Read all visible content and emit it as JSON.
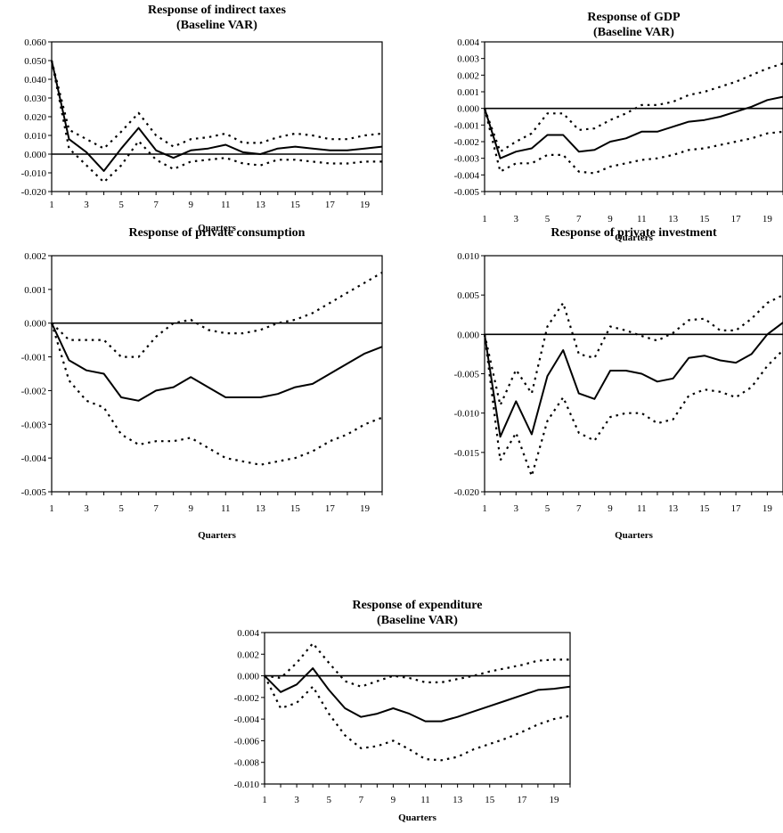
{
  "chart_data": [
    {
      "type": "line",
      "title": "Response of indirect taxes",
      "subtitle": "(Baseline VAR)",
      "xlabel": "Quarters",
      "ylabel": "",
      "ylim": [
        -0.02,
        0.06
      ],
      "yticks": [
        "0.060",
        "0.050",
        "0.040",
        "0.030",
        "0.020",
        "0.010",
        "0.000",
        "-0.010",
        "-0.020"
      ],
      "xticks": [
        "1",
        "3",
        "5",
        "7",
        "9",
        "11",
        "13",
        "15",
        "17",
        "19"
      ],
      "x": [
        1,
        2,
        3,
        4,
        5,
        6,
        7,
        8,
        9,
        10,
        11,
        12,
        13,
        14,
        15,
        16,
        17,
        18,
        19,
        20
      ],
      "series": [
        {
          "values": [
            0.05,
            0.008,
            0.001,
            -0.009,
            0.003,
            0.014,
            0.002,
            -0.002,
            0.002,
            0.003,
            0.005,
            0.001,
            0.0,
            0.003,
            0.004,
            0.003,
            0.002,
            0.002,
            0.003,
            0.004
          ]
        },
        {
          "values": [
            0.05,
            0.013,
            0.008,
            0.003,
            0.012,
            0.022,
            0.01,
            0.004,
            0.008,
            0.009,
            0.011,
            0.006,
            0.006,
            0.009,
            0.011,
            0.01,
            0.008,
            0.008,
            0.01,
            0.011
          ]
        },
        {
          "values": [
            0.05,
            0.003,
            -0.006,
            -0.015,
            -0.006,
            0.007,
            -0.003,
            -0.008,
            -0.004,
            -0.003,
            -0.002,
            -0.005,
            -0.006,
            -0.003,
            -0.003,
            -0.004,
            -0.005,
            -0.005,
            -0.004,
            -0.004
          ]
        }
      ]
    },
    {
      "type": "line",
      "title": "Response of GDP",
      "subtitle": "(Baseline VAR)",
      "xlabel": "Quarters",
      "ylabel": "",
      "ylim": [
        -0.005,
        0.004
      ],
      "yticks": [
        "0.004",
        "0.003",
        "0.002",
        "0.001",
        "0.000",
        "-0.001",
        "-0.002",
        "-0.003",
        "-0.004",
        "-0.005"
      ],
      "xticks": [
        "1",
        "3",
        "5",
        "7",
        "9",
        "11",
        "13",
        "15",
        "17",
        "19"
      ],
      "x": [
        1,
        2,
        3,
        4,
        5,
        6,
        7,
        8,
        9,
        10,
        11,
        12,
        13,
        14,
        15,
        16,
        17,
        18,
        19,
        20
      ],
      "series": [
        {
          "values": [
            0.0,
            -0.003,
            -0.0026,
            -0.0024,
            -0.0016,
            -0.0016,
            -0.0026,
            -0.0025,
            -0.002,
            -0.0018,
            -0.0014,
            -0.0014,
            -0.0011,
            -0.0008,
            -0.0007,
            -0.0005,
            -0.0002,
            0.0001,
            0.0005,
            0.0007
          ]
        },
        {
          "values": [
            0.0,
            -0.0026,
            -0.002,
            -0.0015,
            -0.0003,
            -0.0003,
            -0.0013,
            -0.0012,
            -0.0007,
            -0.0003,
            0.0002,
            0.0002,
            0.0004,
            0.0008,
            0.001,
            0.0013,
            0.0016,
            0.002,
            0.0024,
            0.0027
          ]
        },
        {
          "values": [
            0.0,
            -0.0038,
            -0.0033,
            -0.0033,
            -0.0028,
            -0.0028,
            -0.0038,
            -0.0039,
            -0.0035,
            -0.0033,
            -0.0031,
            -0.003,
            -0.0028,
            -0.0025,
            -0.0024,
            -0.0022,
            -0.002,
            -0.0018,
            -0.0015,
            -0.0014
          ]
        }
      ]
    },
    {
      "type": "line",
      "title": "Response of private consumption",
      "subtitle": "",
      "xlabel": "Quarters",
      "ylabel": "",
      "ylim": [
        -0.005,
        0.002
      ],
      "yticks": [
        "0.002",
        "0.001",
        "0.000",
        "-0.001",
        "-0.002",
        "-0.003",
        "-0.004",
        "-0.005"
      ],
      "xticks": [
        "1",
        "3",
        "5",
        "7",
        "9",
        "11",
        "13",
        "15",
        "17",
        "19"
      ],
      "x": [
        1,
        2,
        3,
        4,
        5,
        6,
        7,
        8,
        9,
        10,
        11,
        12,
        13,
        14,
        15,
        16,
        17,
        18,
        19,
        20
      ],
      "series": [
        {
          "values": [
            0.0,
            -0.0011,
            -0.0014,
            -0.0015,
            -0.0022,
            -0.0023,
            -0.002,
            -0.0019,
            -0.0016,
            -0.0019,
            -0.0022,
            -0.0022,
            -0.0022,
            -0.0021,
            -0.0019,
            -0.0018,
            -0.0015,
            -0.0012,
            -0.0009,
            -0.0007
          ]
        },
        {
          "values": [
            0.0,
            -0.0005,
            -0.0005,
            -0.0005,
            -0.001,
            -0.001,
            -0.0004,
            0.0,
            0.0001,
            -0.0002,
            -0.0003,
            -0.0003,
            -0.0002,
            0.0,
            0.0001,
            0.0003,
            0.0006,
            0.0009,
            0.0012,
            0.0015
          ]
        },
        {
          "values": [
            0.0,
            -0.0017,
            -0.0023,
            -0.0025,
            -0.0033,
            -0.0036,
            -0.0035,
            -0.0035,
            -0.0034,
            -0.0037,
            -0.004,
            -0.0041,
            -0.0042,
            -0.0041,
            -0.004,
            -0.0038,
            -0.0035,
            -0.0033,
            -0.003,
            -0.0028
          ]
        }
      ]
    },
    {
      "type": "line",
      "title": "Response of private investment",
      "subtitle": "",
      "xlabel": "Quarters",
      "ylabel": "",
      "ylim": [
        -0.02,
        0.01
      ],
      "yticks": [
        "0.010",
        "0.005",
        "0.000",
        "-0.005",
        "-0.010",
        "-0.015",
        "-0.020"
      ],
      "xticks": [
        "1",
        "3",
        "5",
        "7",
        "9",
        "11",
        "13",
        "15",
        "17",
        "19"
      ],
      "x": [
        1,
        2,
        3,
        4,
        5,
        6,
        7,
        8,
        9,
        10,
        11,
        12,
        13,
        14,
        15,
        16,
        17,
        18,
        19,
        20
      ],
      "series": [
        {
          "values": [
            0.0,
            -0.013,
            -0.0085,
            -0.0127,
            -0.0053,
            -0.002,
            -0.0075,
            -0.0082,
            -0.0046,
            -0.0046,
            -0.005,
            -0.006,
            -0.0056,
            -0.003,
            -0.0027,
            -0.0033,
            -0.0036,
            -0.0025,
            0.0,
            0.0015
          ]
        },
        {
          "values": [
            0.0,
            -0.009,
            -0.0045,
            -0.0075,
            0.001,
            0.004,
            -0.0025,
            -0.003,
            0.001,
            0.0005,
            -0.0002,
            -0.0008,
            0.0002,
            0.0018,
            0.002,
            0.0005,
            0.0005,
            0.002,
            0.004,
            0.005
          ]
        },
        {
          "values": [
            0.0,
            -0.016,
            -0.0125,
            -0.018,
            -0.011,
            -0.008,
            -0.0125,
            -0.0135,
            -0.0105,
            -0.01,
            -0.01,
            -0.0113,
            -0.0108,
            -0.0078,
            -0.007,
            -0.0073,
            -0.008,
            -0.0067,
            -0.004,
            -0.002
          ]
        }
      ]
    },
    {
      "type": "line",
      "title": "Response of expenditure",
      "subtitle": "(Baseline VAR)",
      "xlabel": "Quarters",
      "ylabel": "",
      "ylim": [
        -0.01,
        0.004
      ],
      "yticks": [
        "0.004",
        "0.002",
        "0.000",
        "-0.002",
        "-0.004",
        "-0.006",
        "-0.008",
        "-0.010"
      ],
      "xticks": [
        "1",
        "3",
        "5",
        "7",
        "9",
        "11",
        "13",
        "15",
        "17",
        "19"
      ],
      "x": [
        1,
        2,
        3,
        4,
        5,
        6,
        7,
        8,
        9,
        10,
        11,
        12,
        13,
        14,
        15,
        16,
        17,
        18,
        19,
        20
      ],
      "series": [
        {
          "values": [
            0.0,
            -0.0015,
            -0.0008,
            0.0007,
            -0.0013,
            -0.003,
            -0.0038,
            -0.0035,
            -0.003,
            -0.0035,
            -0.0042,
            -0.0042,
            -0.0038,
            -0.0033,
            -0.0028,
            -0.0023,
            -0.0018,
            -0.0013,
            -0.0012,
            -0.001
          ]
        },
        {
          "values": [
            0.0,
            -0.0002,
            0.0012,
            0.003,
            0.0012,
            -0.0005,
            -0.001,
            -0.0005,
            0.0,
            -0.0002,
            -0.0006,
            -0.0006,
            -0.0003,
            0.0,
            0.0004,
            0.0007,
            0.001,
            0.0014,
            0.0015,
            0.0015
          ]
        },
        {
          "values": [
            0.0,
            -0.003,
            -0.0025,
            -0.001,
            -0.0035,
            -0.0055,
            -0.0067,
            -0.0065,
            -0.006,
            -0.0068,
            -0.0077,
            -0.0078,
            -0.0075,
            -0.0068,
            -0.0063,
            -0.0058,
            -0.0052,
            -0.0045,
            -0.004,
            -0.0037
          ]
        }
      ]
    }
  ]
}
